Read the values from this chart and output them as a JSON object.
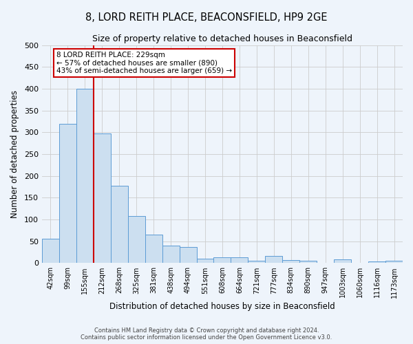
{
  "title": "8, LORD REITH PLACE, BEACONSFIELD, HP9 2GE",
  "subtitle": "Size of property relative to detached houses in Beaconsfield",
  "xlabel": "Distribution of detached houses by size in Beaconsfield",
  "ylabel": "Number of detached properties",
  "bin_labels": [
    "42sqm",
    "99sqm",
    "155sqm",
    "212sqm",
    "268sqm",
    "325sqm",
    "381sqm",
    "438sqm",
    "494sqm",
    "551sqm",
    "608sqm",
    "664sqm",
    "721sqm",
    "777sqm",
    "834sqm",
    "890sqm",
    "947sqm",
    "1003sqm",
    "1060sqm",
    "1116sqm",
    "1173sqm"
  ],
  "bar_heights": [
    55,
    320,
    400,
    298,
    178,
    108,
    65,
    40,
    37,
    10,
    13,
    13,
    5,
    17,
    7,
    5,
    0,
    8,
    0,
    3,
    5
  ],
  "bar_color": "#ccdff0",
  "bar_edge_color": "#5b9bd5",
  "grid_color": "#cccccc",
  "background_color": "#eef4fb",
  "vline_x": 2.5,
  "vline_color": "#cc0000",
  "ylim": [
    0,
    500
  ],
  "yticks": [
    0,
    50,
    100,
    150,
    200,
    250,
    300,
    350,
    400,
    450,
    500
  ],
  "annotation_text": "8 LORD REITH PLACE: 229sqm\n← 57% of detached houses are smaller (890)\n43% of semi-detached houses are larger (659) →",
  "annotation_box_color": "#ffffff",
  "annotation_box_edge": "#cc0000",
  "footer_line1": "Contains HM Land Registry data © Crown copyright and database right 2024.",
  "footer_line2": "Contains public sector information licensed under the Open Government Licence v3.0."
}
